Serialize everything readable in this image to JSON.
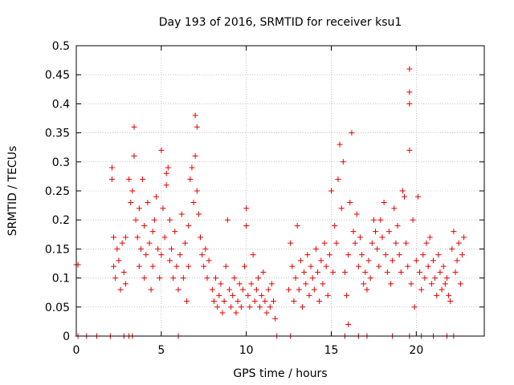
{
  "chart_data": {
    "type": "scatter",
    "title": "Day 193 of 2016, SRMTID for receiver ksu1",
    "xlabel": "GPS time / hours",
    "ylabel": "SRMTID / TECUs",
    "xlim": [
      0,
      24
    ],
    "ylim": [
      0,
      0.5
    ],
    "xticks": [
      0,
      5,
      10,
      15,
      20
    ],
    "xtick_labels": [
      "0",
      "5",
      "10",
      "15",
      "20"
    ],
    "yticks": [
      0,
      0.05,
      0.1,
      0.15,
      0.2,
      0.25,
      0.3,
      0.35,
      0.4,
      0.45,
      0.5
    ],
    "ytick_labels": [
      "0",
      "0.05",
      "0.1",
      "0.15",
      "0.2",
      "0.25",
      "0.3",
      "0.35",
      "0.4",
      "0.45",
      "0.5"
    ],
    "grid": true,
    "marker": "+",
    "color": "#e80000",
    "series": [
      {
        "name": "SRMTID",
        "points": [
          [
            0.0,
            0.123
          ],
          [
            0.1,
            0.123
          ],
          [
            0.1,
            0.0
          ],
          [
            0.6,
            0.0
          ],
          [
            1.2,
            0.0
          ],
          [
            2.0,
            0.0
          ],
          [
            2.8,
            0.0
          ],
          [
            3.1,
            0.0
          ],
          [
            3.3,
            0.0
          ],
          [
            6.0,
            0.0
          ],
          [
            11.8,
            0.0
          ],
          [
            12.6,
            0.0
          ],
          [
            15.8,
            0.0
          ],
          [
            16.6,
            0.0
          ],
          [
            17.1,
            0.0
          ],
          [
            18.6,
            0.0
          ],
          [
            19.6,
            0.0
          ],
          [
            20.3,
            0.0
          ],
          [
            21.0,
            0.0
          ],
          [
            21.8,
            0.0
          ],
          [
            22.2,
            0.0
          ],
          [
            2.1,
            0.29
          ],
          [
            2.1,
            0.27
          ],
          [
            2.2,
            0.17
          ],
          [
            2.2,
            0.12
          ],
          [
            2.3,
            0.1
          ],
          [
            2.4,
            0.15
          ],
          [
            2.5,
            0.13
          ],
          [
            2.6,
            0.08
          ],
          [
            2.7,
            0.16
          ],
          [
            2.8,
            0.11
          ],
          [
            2.9,
            0.17
          ],
          [
            2.9,
            0.09
          ],
          [
            3.1,
            0.27
          ],
          [
            3.2,
            0.23
          ],
          [
            3.3,
            0.25
          ],
          [
            3.4,
            0.36
          ],
          [
            3.4,
            0.31
          ],
          [
            3.5,
            0.2
          ],
          [
            3.6,
            0.17
          ],
          [
            3.7,
            0.22
          ],
          [
            3.7,
            0.12
          ],
          [
            3.8,
            0.15
          ],
          [
            3.9,
            0.27
          ],
          [
            4.0,
            0.19
          ],
          [
            4.0,
            0.1
          ],
          [
            4.1,
            0.14
          ],
          [
            4.2,
            0.23
          ],
          [
            4.3,
            0.16
          ],
          [
            4.4,
            0.08
          ],
          [
            4.5,
            0.18
          ],
          [
            4.5,
            0.12
          ],
          [
            4.6,
            0.2
          ],
          [
            4.7,
            0.24
          ],
          [
            4.8,
            0.15
          ],
          [
            4.9,
            0.1
          ],
          [
            5.0,
            0.32
          ],
          [
            5.0,
            0.14
          ],
          [
            5.1,
            0.22
          ],
          [
            5.2,
            0.17
          ],
          [
            5.3,
            0.28
          ],
          [
            5.3,
            0.26
          ],
          [
            5.4,
            0.29
          ],
          [
            5.5,
            0.2
          ],
          [
            5.5,
            0.13
          ],
          [
            5.6,
            0.15
          ],
          [
            5.7,
            0.1
          ],
          [
            5.8,
            0.18
          ],
          [
            5.9,
            0.12
          ],
          [
            6.0,
            0.08
          ],
          [
            6.1,
            0.14
          ],
          [
            6.2,
            0.21
          ],
          [
            6.3,
            0.1
          ],
          [
            6.4,
            0.16
          ],
          [
            6.5,
            0.06
          ],
          [
            6.6,
            0.19
          ],
          [
            6.6,
            0.12
          ],
          [
            6.7,
            0.27
          ],
          [
            6.8,
            0.29
          ],
          [
            6.9,
            0.23
          ],
          [
            7.0,
            0.31
          ],
          [
            7.0,
            0.38
          ],
          [
            7.1,
            0.36
          ],
          [
            7.1,
            0.25
          ],
          [
            7.2,
            0.21
          ],
          [
            7.3,
            0.17
          ],
          [
            7.4,
            0.14
          ],
          [
            7.5,
            0.12
          ],
          [
            7.6,
            0.15
          ],
          [
            7.7,
            0.1
          ],
          [
            7.8,
            0.13
          ],
          [
            8.0,
            0.08
          ],
          [
            8.1,
            0.06
          ],
          [
            8.2,
            0.1
          ],
          [
            8.3,
            0.05
          ],
          [
            8.4,
            0.07
          ],
          [
            8.5,
            0.09
          ],
          [
            8.6,
            0.04
          ],
          [
            8.7,
            0.06
          ],
          [
            8.8,
            0.12
          ],
          [
            8.9,
            0.2
          ],
          [
            9.0,
            0.08
          ],
          [
            9.1,
            0.05
          ],
          [
            9.2,
            0.07
          ],
          [
            9.3,
            0.1
          ],
          [
            9.4,
            0.04
          ],
          [
            9.5,
            0.06
          ],
          [
            9.6,
            0.09
          ],
          [
            9.7,
            0.05
          ],
          [
            9.8,
            0.08
          ],
          [
            9.9,
            0.12
          ],
          [
            10.0,
            0.22
          ],
          [
            10.0,
            0.19
          ],
          [
            10.1,
            0.07
          ],
          [
            10.2,
            0.05
          ],
          [
            10.3,
            0.09
          ],
          [
            10.4,
            0.14
          ],
          [
            10.5,
            0.06
          ],
          [
            10.6,
            0.08
          ],
          [
            10.7,
            0.1
          ],
          [
            10.8,
            0.05
          ],
          [
            10.9,
            0.07
          ],
          [
            11.0,
            0.11
          ],
          [
            11.1,
            0.06
          ],
          [
            11.2,
            0.04
          ],
          [
            11.3,
            0.08
          ],
          [
            11.4,
            0.05
          ],
          [
            11.5,
            0.09
          ],
          [
            11.6,
            0.06
          ],
          [
            11.7,
            0.03
          ],
          [
            12.5,
            0.08
          ],
          [
            12.6,
            0.16
          ],
          [
            12.7,
            0.12
          ],
          [
            12.8,
            0.06
          ],
          [
            12.9,
            0.1
          ],
          [
            13.0,
            0.19
          ],
          [
            13.1,
            0.08
          ],
          [
            13.2,
            0.13
          ],
          [
            13.3,
            0.05
          ],
          [
            13.4,
            0.11
          ],
          [
            13.5,
            0.09
          ],
          [
            13.6,
            0.14
          ],
          [
            13.7,
            0.07
          ],
          [
            13.8,
            0.12
          ],
          [
            13.9,
            0.1
          ],
          [
            14.0,
            0.08
          ],
          [
            14.1,
            0.15
          ],
          [
            14.2,
            0.11
          ],
          [
            14.3,
            0.06
          ],
          [
            14.4,
            0.13
          ],
          [
            14.5,
            0.09
          ],
          [
            14.6,
            0.16
          ],
          [
            14.7,
            0.12
          ],
          [
            14.8,
            0.07
          ],
          [
            14.9,
            0.14
          ],
          [
            15.0,
            0.25
          ],
          [
            15.1,
            0.11
          ],
          [
            15.2,
            0.19
          ],
          [
            15.3,
            0.16
          ],
          [
            15.4,
            0.27
          ],
          [
            15.5,
            0.33
          ],
          [
            15.6,
            0.22
          ],
          [
            15.7,
            0.3
          ],
          [
            15.8,
            0.11
          ],
          [
            15.9,
            0.07
          ],
          [
            16.0,
            0.02
          ],
          [
            16.0,
            0.14
          ],
          [
            16.1,
            0.23
          ],
          [
            16.2,
            0.35
          ],
          [
            16.3,
            0.18
          ],
          [
            16.4,
            0.16
          ],
          [
            16.5,
            0.21
          ],
          [
            16.6,
            0.12
          ],
          [
            16.7,
            0.17
          ],
          [
            16.8,
            0.14
          ],
          [
            16.9,
            0.09
          ],
          [
            17.0,
            0.11
          ],
          [
            17.1,
            0.08
          ],
          [
            17.2,
            0.13
          ],
          [
            17.3,
            0.1
          ],
          [
            17.4,
            0.16
          ],
          [
            17.5,
            0.2
          ],
          [
            17.6,
            0.18
          ],
          [
            17.7,
            0.15
          ],
          [
            17.8,
            0.12
          ],
          [
            17.9,
            0.2
          ],
          [
            18.0,
            0.17
          ],
          [
            18.1,
            0.23
          ],
          [
            18.2,
            0.14
          ],
          [
            18.3,
            0.11
          ],
          [
            18.4,
            0.18
          ],
          [
            18.5,
            0.09
          ],
          [
            18.6,
            0.13
          ],
          [
            18.7,
            0.22
          ],
          [
            18.8,
            0.16
          ],
          [
            18.9,
            0.19
          ],
          [
            19.0,
            0.14
          ],
          [
            19.1,
            0.11
          ],
          [
            19.2,
            0.25
          ],
          [
            19.3,
            0.24
          ],
          [
            19.4,
            0.16
          ],
          [
            19.5,
            0.12
          ],
          [
            19.6,
            0.46
          ],
          [
            19.6,
            0.42
          ],
          [
            19.6,
            0.4
          ],
          [
            19.6,
            0.32
          ],
          [
            19.7,
            0.09
          ],
          [
            19.8,
            0.2
          ],
          [
            19.9,
            0.05
          ],
          [
            20.0,
            0.13
          ],
          [
            20.1,
            0.24
          ],
          [
            20.2,
            0.11
          ],
          [
            20.3,
            0.08
          ],
          [
            20.4,
            0.14
          ],
          [
            20.5,
            0.1
          ],
          [
            20.6,
            0.16
          ],
          [
            20.7,
            0.12
          ],
          [
            20.8,
            0.17
          ],
          [
            20.9,
            0.09
          ],
          [
            21.0,
            0.13
          ],
          [
            21.1,
            0.1
          ],
          [
            21.2,
            0.07
          ],
          [
            21.3,
            0.14
          ],
          [
            21.4,
            0.11
          ],
          [
            21.5,
            0.08
          ],
          [
            21.6,
            0.12
          ],
          [
            21.7,
            0.09
          ],
          [
            21.8,
            0.1
          ],
          [
            21.9,
            0.07
          ],
          [
            22.0,
            0.06
          ],
          [
            22.1,
            0.15
          ],
          [
            22.2,
            0.18
          ],
          [
            22.3,
            0.11
          ],
          [
            22.4,
            0.13
          ],
          [
            22.5,
            0.16
          ],
          [
            22.6,
            0.09
          ],
          [
            22.7,
            0.14
          ],
          [
            22.8,
            0.17
          ]
        ]
      }
    ]
  }
}
